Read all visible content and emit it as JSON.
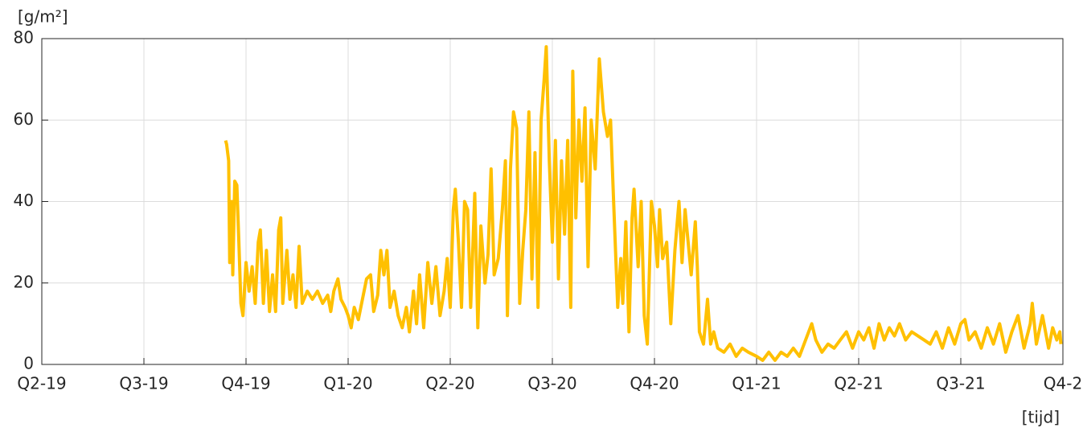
{
  "chart_data": {
    "type": "line",
    "ylabel": "[g/m²]",
    "xlabel": "[tijd]",
    "color": "#ffc000",
    "grid": true,
    "xlim": [
      0,
      10
    ],
    "xticks": [
      {
        "value": 0,
        "label": "Q2-19"
      },
      {
        "value": 1,
        "label": "Q3-19"
      },
      {
        "value": 2,
        "label": "Q4-19"
      },
      {
        "value": 3,
        "label": "Q1-20"
      },
      {
        "value": 4,
        "label": "Q2-20"
      },
      {
        "value": 5,
        "label": "Q3-20"
      },
      {
        "value": 6,
        "label": "Q4-20"
      },
      {
        "value": 7,
        "label": "Q1-21"
      },
      {
        "value": 8,
        "label": "Q2-21"
      },
      {
        "value": 9,
        "label": "Q3-21"
      },
      {
        "value": 10,
        "label": "Q4-2"
      }
    ],
    "ylim": [
      0,
      80
    ],
    "yticks": [
      0,
      20,
      40,
      60,
      80
    ],
    "x": [
      1.8,
      1.81,
      1.83,
      1.84,
      1.86,
      1.87,
      1.89,
      1.91,
      1.93,
      1.95,
      1.97,
      2.0,
      2.03,
      2.06,
      2.09,
      2.12,
      2.14,
      2.17,
      2.2,
      2.23,
      2.26,
      2.29,
      2.32,
      2.34,
      2.36,
      2.4,
      2.43,
      2.46,
      2.49,
      2.52,
      2.55,
      2.6,
      2.65,
      2.7,
      2.75,
      2.8,
      2.83,
      2.86,
      2.9,
      2.93,
      2.97,
      3.0,
      3.03,
      3.06,
      3.1,
      3.14,
      3.18,
      3.22,
      3.25,
      3.29,
      3.32,
      3.35,
      3.38,
      3.41,
      3.45,
      3.49,
      3.53,
      3.57,
      3.6,
      3.64,
      3.67,
      3.7,
      3.74,
      3.78,
      3.82,
      3.86,
      3.9,
      3.94,
      3.97,
      4.0,
      4.03,
      4.05,
      4.08,
      4.11,
      4.14,
      4.17,
      4.2,
      4.24,
      4.27,
      4.3,
      4.34,
      4.37,
      4.4,
      4.43,
      4.47,
      4.51,
      4.54,
      4.56,
      4.59,
      4.62,
      4.65,
      4.68,
      4.71,
      4.74,
      4.77,
      4.8,
      4.83,
      4.86,
      4.89,
      4.92,
      4.94,
      4.97,
      5.0,
      5.03,
      5.06,
      5.09,
      5.12,
      5.15,
      5.18,
      5.2,
      5.23,
      5.26,
      5.29,
      5.32,
      5.35,
      5.38,
      5.42,
      5.46,
      5.5,
      5.54,
      5.57,
      5.6,
      5.64,
      5.67,
      5.69,
      5.72,
      5.75,
      5.78,
      5.8,
      5.84,
      5.87,
      5.9,
      5.93,
      5.97,
      6.0,
      6.03,
      6.05,
      6.08,
      6.12,
      6.16,
      6.2,
      6.24,
      6.27,
      6.3,
      6.33,
      6.36,
      6.4,
      6.42,
      6.44,
      6.48,
      6.52,
      6.55,
      6.58,
      6.62,
      6.68,
      6.74,
      6.8,
      6.86,
      6.92,
      7.0,
      7.06,
      7.12,
      7.18,
      7.24,
      7.3,
      7.36,
      7.42,
      7.48,
      7.54,
      7.58,
      7.64,
      7.7,
      7.76,
      7.82,
      7.88,
      7.94,
      8.0,
      8.05,
      8.1,
      8.15,
      8.2,
      8.25,
      8.3,
      8.35,
      8.4,
      8.46,
      8.52,
      8.58,
      8.64,
      8.7,
      8.76,
      8.82,
      8.88,
      8.94,
      9.0,
      9.04,
      9.08,
      9.14,
      9.2,
      9.26,
      9.32,
      9.38,
      9.44,
      9.5,
      9.56,
      9.62,
      9.68,
      9.7,
      9.74,
      9.8,
      9.86,
      9.9,
      9.94,
      9.97,
      9.98
    ],
    "values": [
      55,
      54,
      50,
      25,
      40,
      22,
      45,
      44,
      30,
      15,
      12,
      25,
      18,
      24,
      15,
      30,
      33,
      15,
      28,
      13,
      22,
      13,
      33,
      36,
      15,
      28,
      16,
      22,
      14,
      29,
      15,
      18,
      16,
      18,
      15,
      17,
      13,
      18,
      21,
      16,
      14,
      12,
      9,
      14,
      11,
      16,
      21,
      22,
      13,
      17,
      28,
      22,
      28,
      14,
      18,
      12,
      9,
      14,
      8,
      18,
      10,
      22,
      9,
      25,
      15,
      24,
      12,
      18,
      26,
      14,
      38,
      43,
      30,
      14,
      40,
      38,
      14,
      42,
      9,
      34,
      20,
      27,
      48,
      22,
      26,
      38,
      50,
      12,
      48,
      62,
      58,
      15,
      28,
      38,
      62,
      21,
      52,
      14,
      60,
      70,
      78,
      50,
      30,
      55,
      21,
      50,
      32,
      55,
      14,
      72,
      36,
      60,
      45,
      63,
      24,
      60,
      48,
      75,
      62,
      56,
      60,
      40,
      14,
      26,
      15,
      35,
      8,
      36,
      43,
      24,
      40,
      12,
      5,
      40,
      34,
      24,
      38,
      26,
      30,
      10,
      28,
      40,
      25,
      38,
      30,
      22,
      35,
      24,
      8,
      5,
      16,
      5,
      8,
      4,
      3,
      5,
      2,
      4,
      3,
      2,
      1,
      3,
      1,
      3,
      2,
      4,
      2,
      6,
      10,
      6,
      3,
      5,
      4,
      6,
      8,
      4,
      8,
      6,
      9,
      4,
      10,
      6,
      9,
      7,
      10,
      6,
      8,
      7,
      6,
      5,
      8,
      4,
      9,
      5,
      10,
      11,
      6,
      8,
      4,
      9,
      5,
      10,
      3,
      8,
      12,
      4,
      10,
      15,
      5,
      12,
      4,
      9,
      6,
      8,
      5
    ]
  }
}
